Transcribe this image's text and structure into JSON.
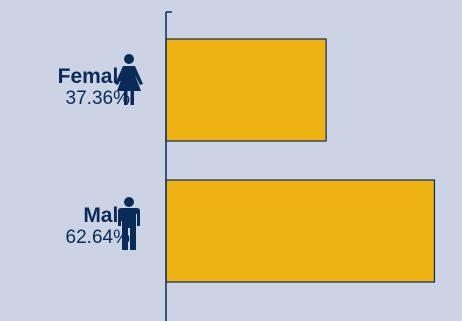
{
  "chart_data": {
    "type": "bar",
    "orientation": "horizontal",
    "categories": [
      "Female",
      "Male"
    ],
    "icons": [
      "female-person-icon",
      "male-person-icon"
    ],
    "values": [
      37.36,
      62.64
    ],
    "value_labels": [
      "37.36%",
      "62.64%"
    ],
    "xlim": [
      0,
      63
    ],
    "grid": false,
    "legend": "none"
  },
  "colors": {
    "background": "#cbd3e4",
    "bar": "#efb213",
    "bar_border": "#0a2b57",
    "axis": "#0a2b57",
    "text": "#0a2b57"
  }
}
